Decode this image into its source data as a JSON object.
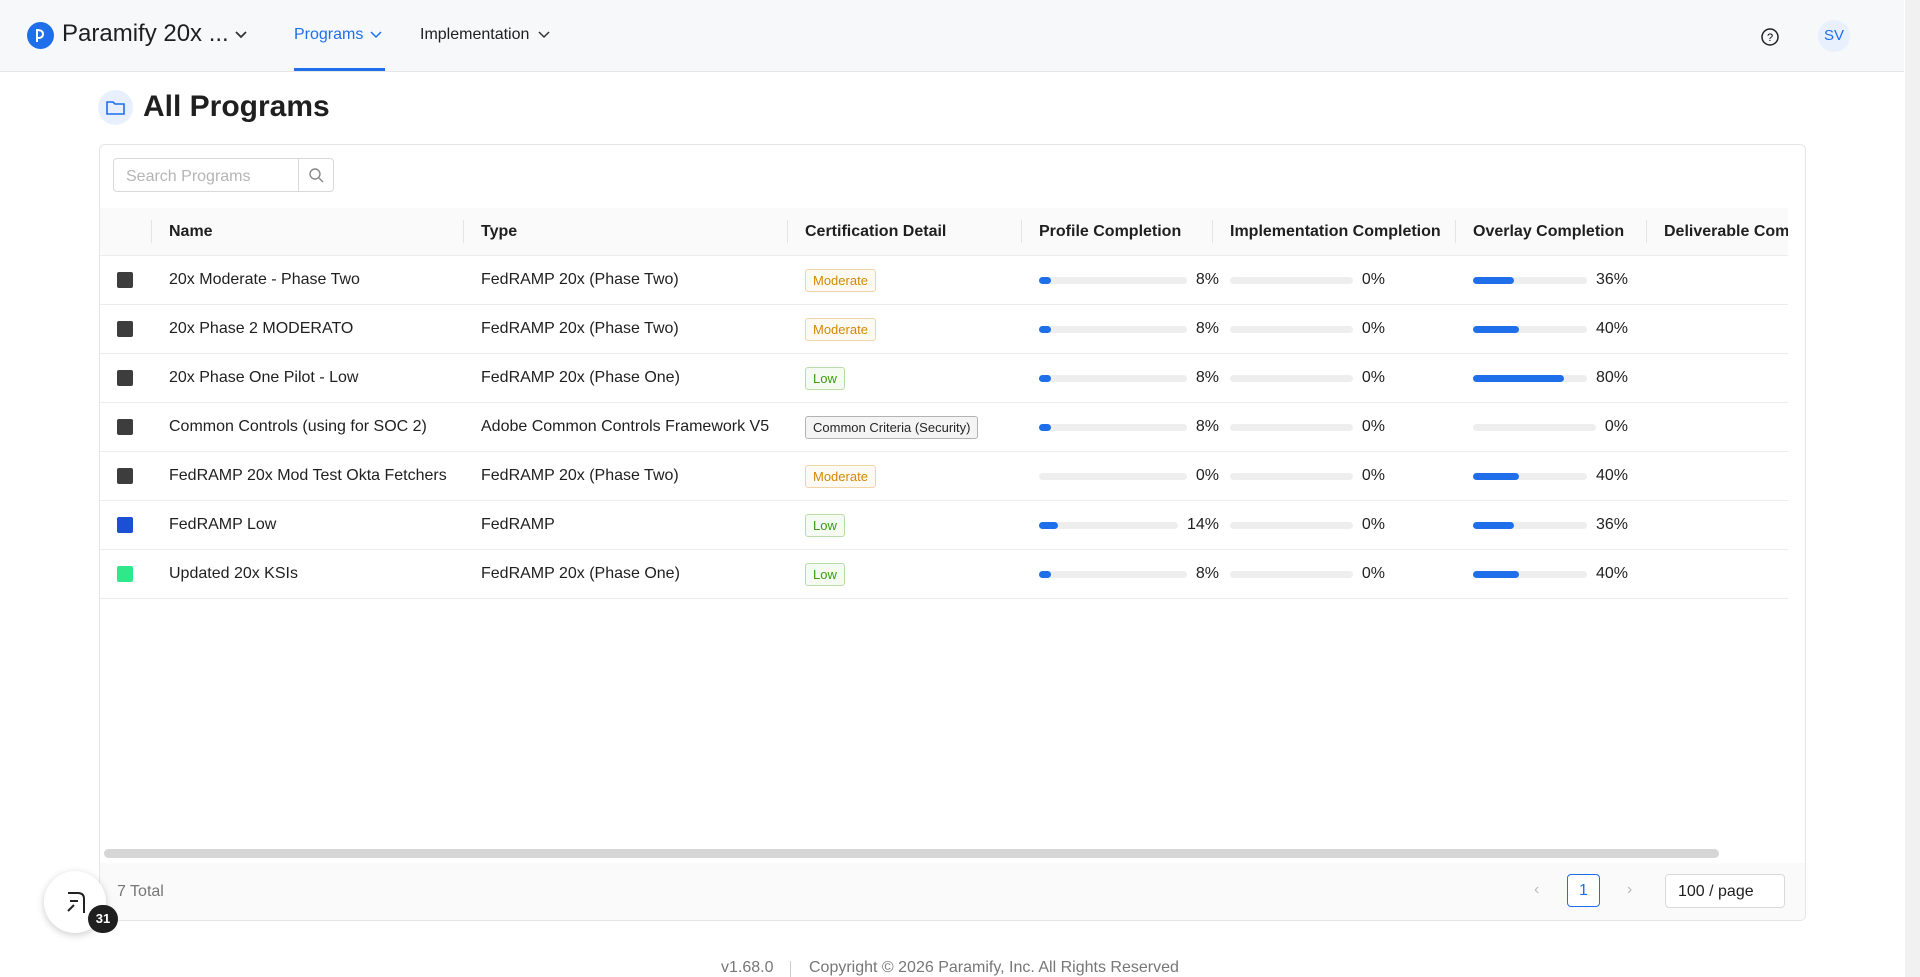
{
  "header": {
    "brand": "Paramify 20x ...",
    "nav": [
      "Programs",
      "Implementation"
    ],
    "user": "SV"
  },
  "page": {
    "title": "All Programs"
  },
  "search": {
    "placeholder": "Search Programs"
  },
  "table": {
    "columns": [
      "Name",
      "Type",
      "Certification Detail",
      "Profile Completion",
      "Implementation Completion",
      "Overlay Completion",
      "Deliverable Completion"
    ],
    "rows": [
      {
        "color": "#3d3d3d",
        "name": "20x Moderate - Phase Two",
        "type": "FedRAMP 20x (Phase Two)",
        "cert": "Moderate",
        "tag_color": "#d48806",
        "profile": {
          "value": 8,
          "label": "8%"
        },
        "implementation": {
          "value": 0,
          "label": "0%"
        },
        "overlay": {
          "value": 36,
          "label": "36%"
        }
      },
      {
        "color": "#3d3d3d",
        "name": "20x Phase 2 MODERATO",
        "type": "FedRAMP 20x (Phase Two)",
        "cert": "Moderate",
        "tag_color": "#d48806",
        "profile": {
          "value": 8,
          "label": "8%"
        },
        "implementation": {
          "value": 0,
          "label": "0%"
        },
        "overlay": {
          "value": 40,
          "label": "40%"
        }
      },
      {
        "color": "#3d3d3d",
        "name": "20x Phase One Pilot - Low",
        "type": "FedRAMP 20x (Phase One)",
        "cert": "Low",
        "tag_color": "#389e0d",
        "profile": {
          "value": 8,
          "label": "8%"
        },
        "implementation": {
          "value": 0,
          "label": "0%"
        },
        "overlay": {
          "value": 80,
          "label": "80%"
        }
      },
      {
        "color": "#3d3d3d",
        "name": "Common Controls (using for SOC 2)",
        "type": "Adobe Common Controls Framework V5",
        "cert": "Common Criteria (Security)",
        "tag_color": "#262626",
        "profile": {
          "value": 8,
          "label": "8%"
        },
        "implementation": {
          "value": 0,
          "label": "0%"
        },
        "overlay": {
          "value": 0,
          "label": "0%"
        }
      },
      {
        "color": "#3d3d3d",
        "name": "FedRAMP 20x Mod Test Okta Fetchers",
        "type": "FedRAMP 20x (Phase Two)",
        "cert": "Moderate",
        "tag_color": "#d48806",
        "profile": {
          "value": 0,
          "label": "0%"
        },
        "implementation": {
          "value": 0,
          "label": "0%"
        },
        "overlay": {
          "value": 40,
          "label": "40%"
        }
      },
      {
        "color": "#1a4fd6",
        "name": "FedRAMP Low",
        "type": "FedRAMP",
        "cert": "Low",
        "tag_color": "#389e0d",
        "profile": {
          "value": 14,
          "label": "14%"
        },
        "implementation": {
          "value": 0,
          "label": "0%"
        },
        "overlay": {
          "value": 36,
          "label": "36%"
        }
      },
      {
        "color": "#2ee88a",
        "name": "Updated 20x KSIs",
        "type": "FedRAMP 20x (Phase One)",
        "cert": "Low",
        "tag_color": "#389e0d",
        "profile": {
          "value": 8,
          "label": "8%"
        },
        "implementation": {
          "value": 0,
          "label": "0%"
        },
        "overlay": {
          "value": 40,
          "label": "40%"
        }
      }
    ]
  },
  "pagination": {
    "total": "7 Total",
    "page": 1,
    "page_size": "100 / page"
  },
  "helper_badge": 31,
  "footer": {
    "version": "v1.68.0",
    "copyright": "Copyright © 2026 Paramify, Inc. All Rights Reserved"
  }
}
